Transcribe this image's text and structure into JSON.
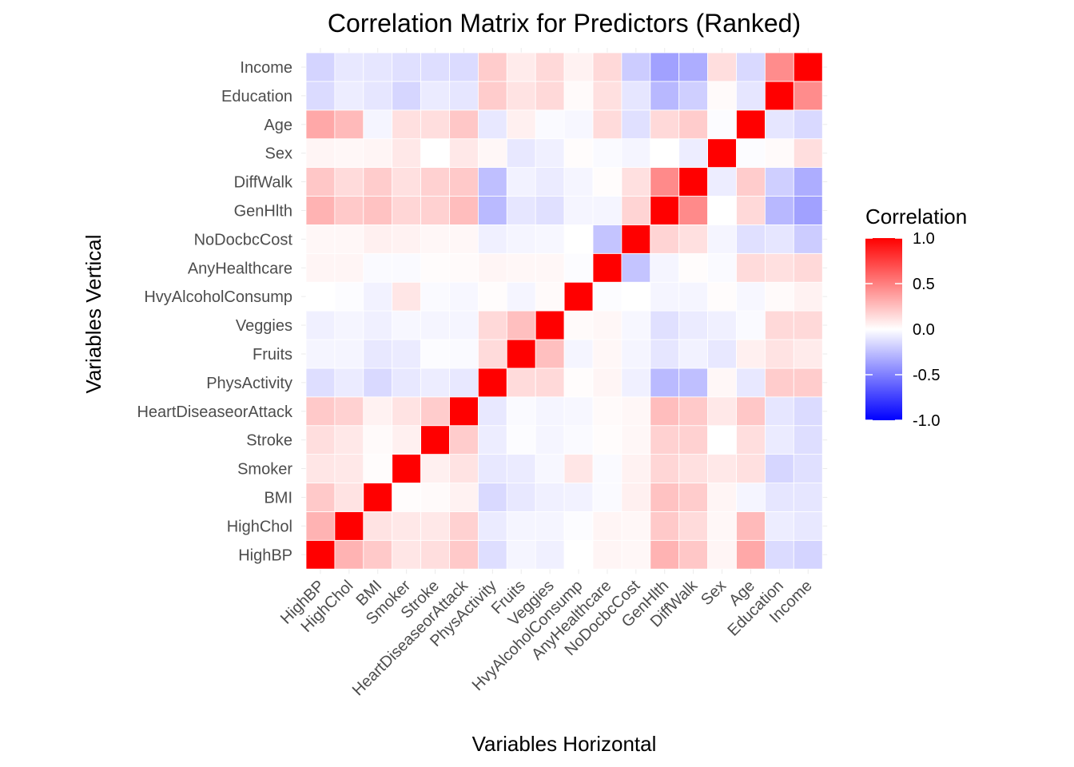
{
  "chart_data": {
    "type": "heatmap",
    "title": "Correlation Matrix for Predictors (Ranked)",
    "xlabel": "Variables Horizontal",
    "ylabel": "Variables Vertical",
    "variables": [
      "HighBP",
      "HighChol",
      "BMI",
      "Smoker",
      "Stroke",
      "HeartDiseaseorAttack",
      "PhysActivity",
      "Fruits",
      "Veggies",
      "HvyAlcoholConsump",
      "AnyHealthcare",
      "NoDocbcCost",
      "GenHlth",
      "DiffWalk",
      "Sex",
      "Age",
      "Education",
      "Income"
    ],
    "matrix": [
      [
        1.0,
        0.3,
        0.21,
        0.1,
        0.13,
        0.21,
        -0.13,
        -0.04,
        -0.06,
        0.0,
        0.04,
        0.03,
        0.3,
        0.22,
        0.04,
        0.34,
        -0.14,
        -0.17
      ],
      [
        0.3,
        1.0,
        0.11,
        0.09,
        0.09,
        0.18,
        -0.08,
        -0.04,
        -0.04,
        -0.01,
        0.04,
        0.03,
        0.21,
        0.14,
        0.03,
        0.27,
        -0.07,
        -0.09
      ],
      [
        0.21,
        0.11,
        1.0,
        0.01,
        0.02,
        0.05,
        -0.15,
        -0.09,
        -0.06,
        -0.05,
        -0.02,
        0.06,
        0.24,
        0.2,
        0.04,
        -0.04,
        -0.1,
        -0.1
      ],
      [
        0.1,
        0.09,
        0.01,
        1.0,
        0.06,
        0.11,
        -0.09,
        -0.08,
        -0.03,
        0.1,
        -0.02,
        0.05,
        0.16,
        0.12,
        0.09,
        0.12,
        -0.16,
        -0.12
      ],
      [
        0.13,
        0.09,
        0.02,
        0.06,
        1.0,
        0.2,
        -0.07,
        -0.01,
        -0.04,
        -0.02,
        0.01,
        0.03,
        0.18,
        0.18,
        0.0,
        0.13,
        -0.08,
        -0.13
      ],
      [
        0.21,
        0.18,
        0.05,
        0.11,
        0.2,
        1.0,
        -0.09,
        -0.02,
        -0.04,
        -0.03,
        0.02,
        0.03,
        0.26,
        0.21,
        0.09,
        0.22,
        -0.1,
        -0.14
      ],
      [
        -0.13,
        -0.08,
        -0.15,
        -0.09,
        -0.07,
        -0.09,
        1.0,
        0.14,
        0.15,
        0.01,
        0.04,
        -0.06,
        -0.27,
        -0.25,
        0.03,
        -0.09,
        0.2,
        0.2
      ],
      [
        -0.04,
        -0.04,
        -0.09,
        -0.08,
        -0.01,
        -0.02,
        0.14,
        1.0,
        0.25,
        -0.04,
        0.03,
        -0.04,
        -0.1,
        -0.05,
        -0.09,
        0.06,
        0.11,
        0.08
      ],
      [
        -0.06,
        -0.04,
        -0.06,
        -0.03,
        -0.04,
        -0.04,
        0.15,
        0.25,
        1.0,
        0.02,
        0.03,
        -0.03,
        -0.12,
        -0.08,
        -0.06,
        -0.02,
        0.15,
        0.15
      ],
      [
        0.0,
        -0.01,
        -0.05,
        0.1,
        -0.02,
        -0.03,
        0.01,
        -0.04,
        0.02,
        1.0,
        -0.01,
        0.0,
        -0.04,
        -0.04,
        0.01,
        -0.03,
        0.02,
        0.05
      ],
      [
        0.04,
        0.04,
        -0.02,
        -0.02,
        0.01,
        0.02,
        0.04,
        0.03,
        0.03,
        -0.01,
        1.0,
        -0.23,
        -0.04,
        0.01,
        -0.02,
        0.14,
        0.12,
        0.15
      ],
      [
        0.03,
        0.03,
        0.06,
        0.05,
        0.03,
        0.03,
        -0.06,
        -0.04,
        -0.03,
        0.0,
        -0.23,
        1.0,
        0.17,
        0.12,
        -0.04,
        -0.12,
        -0.1,
        -0.2
      ],
      [
        0.3,
        0.21,
        0.24,
        0.16,
        0.18,
        0.26,
        -0.27,
        -0.1,
        -0.12,
        -0.04,
        -0.04,
        0.17,
        1.0,
        0.46,
        0.0,
        0.15,
        -0.28,
        -0.37
      ],
      [
        0.22,
        0.14,
        0.2,
        0.12,
        0.18,
        0.21,
        -0.25,
        -0.05,
        -0.08,
        -0.04,
        0.01,
        0.12,
        0.46,
        1.0,
        -0.07,
        0.2,
        -0.19,
        -0.32
      ],
      [
        0.04,
        0.03,
        0.04,
        0.09,
        0.0,
        0.09,
        0.03,
        -0.09,
        -0.06,
        0.01,
        -0.02,
        -0.04,
        0.0,
        -0.07,
        1.0,
        -0.01,
        0.02,
        0.13
      ],
      [
        0.34,
        0.27,
        -0.04,
        0.12,
        0.13,
        0.22,
        -0.09,
        0.06,
        -0.02,
        -0.03,
        0.14,
        -0.12,
        0.15,
        0.2,
        -0.01,
        1.0,
        -0.1,
        -0.15
      ],
      [
        -0.14,
        -0.07,
        -0.1,
        -0.16,
        -0.08,
        -0.1,
        0.2,
        0.11,
        0.15,
        0.02,
        0.12,
        -0.1,
        -0.28,
        -0.19,
        0.02,
        -0.1,
        1.0,
        0.45
      ],
      [
        -0.17,
        -0.09,
        -0.1,
        -0.12,
        -0.13,
        -0.14,
        0.2,
        0.08,
        0.15,
        0.05,
        0.15,
        -0.2,
        -0.37,
        -0.32,
        0.13,
        -0.15,
        0.45,
        1.0
      ]
    ],
    "color_scale": {
      "low": "#0000ff",
      "mid": "#ffffff",
      "high": "#ff0000",
      "range": [
        -1,
        1
      ]
    },
    "legend": {
      "title": "Correlation",
      "position": "right",
      "ticks": [
        1.0,
        0.5,
        0.0,
        -0.5,
        -1.0
      ],
      "tick_labels": [
        "1.0",
        "0.5",
        "0.0",
        "-0.5",
        "-1.0"
      ]
    },
    "grid": true
  }
}
